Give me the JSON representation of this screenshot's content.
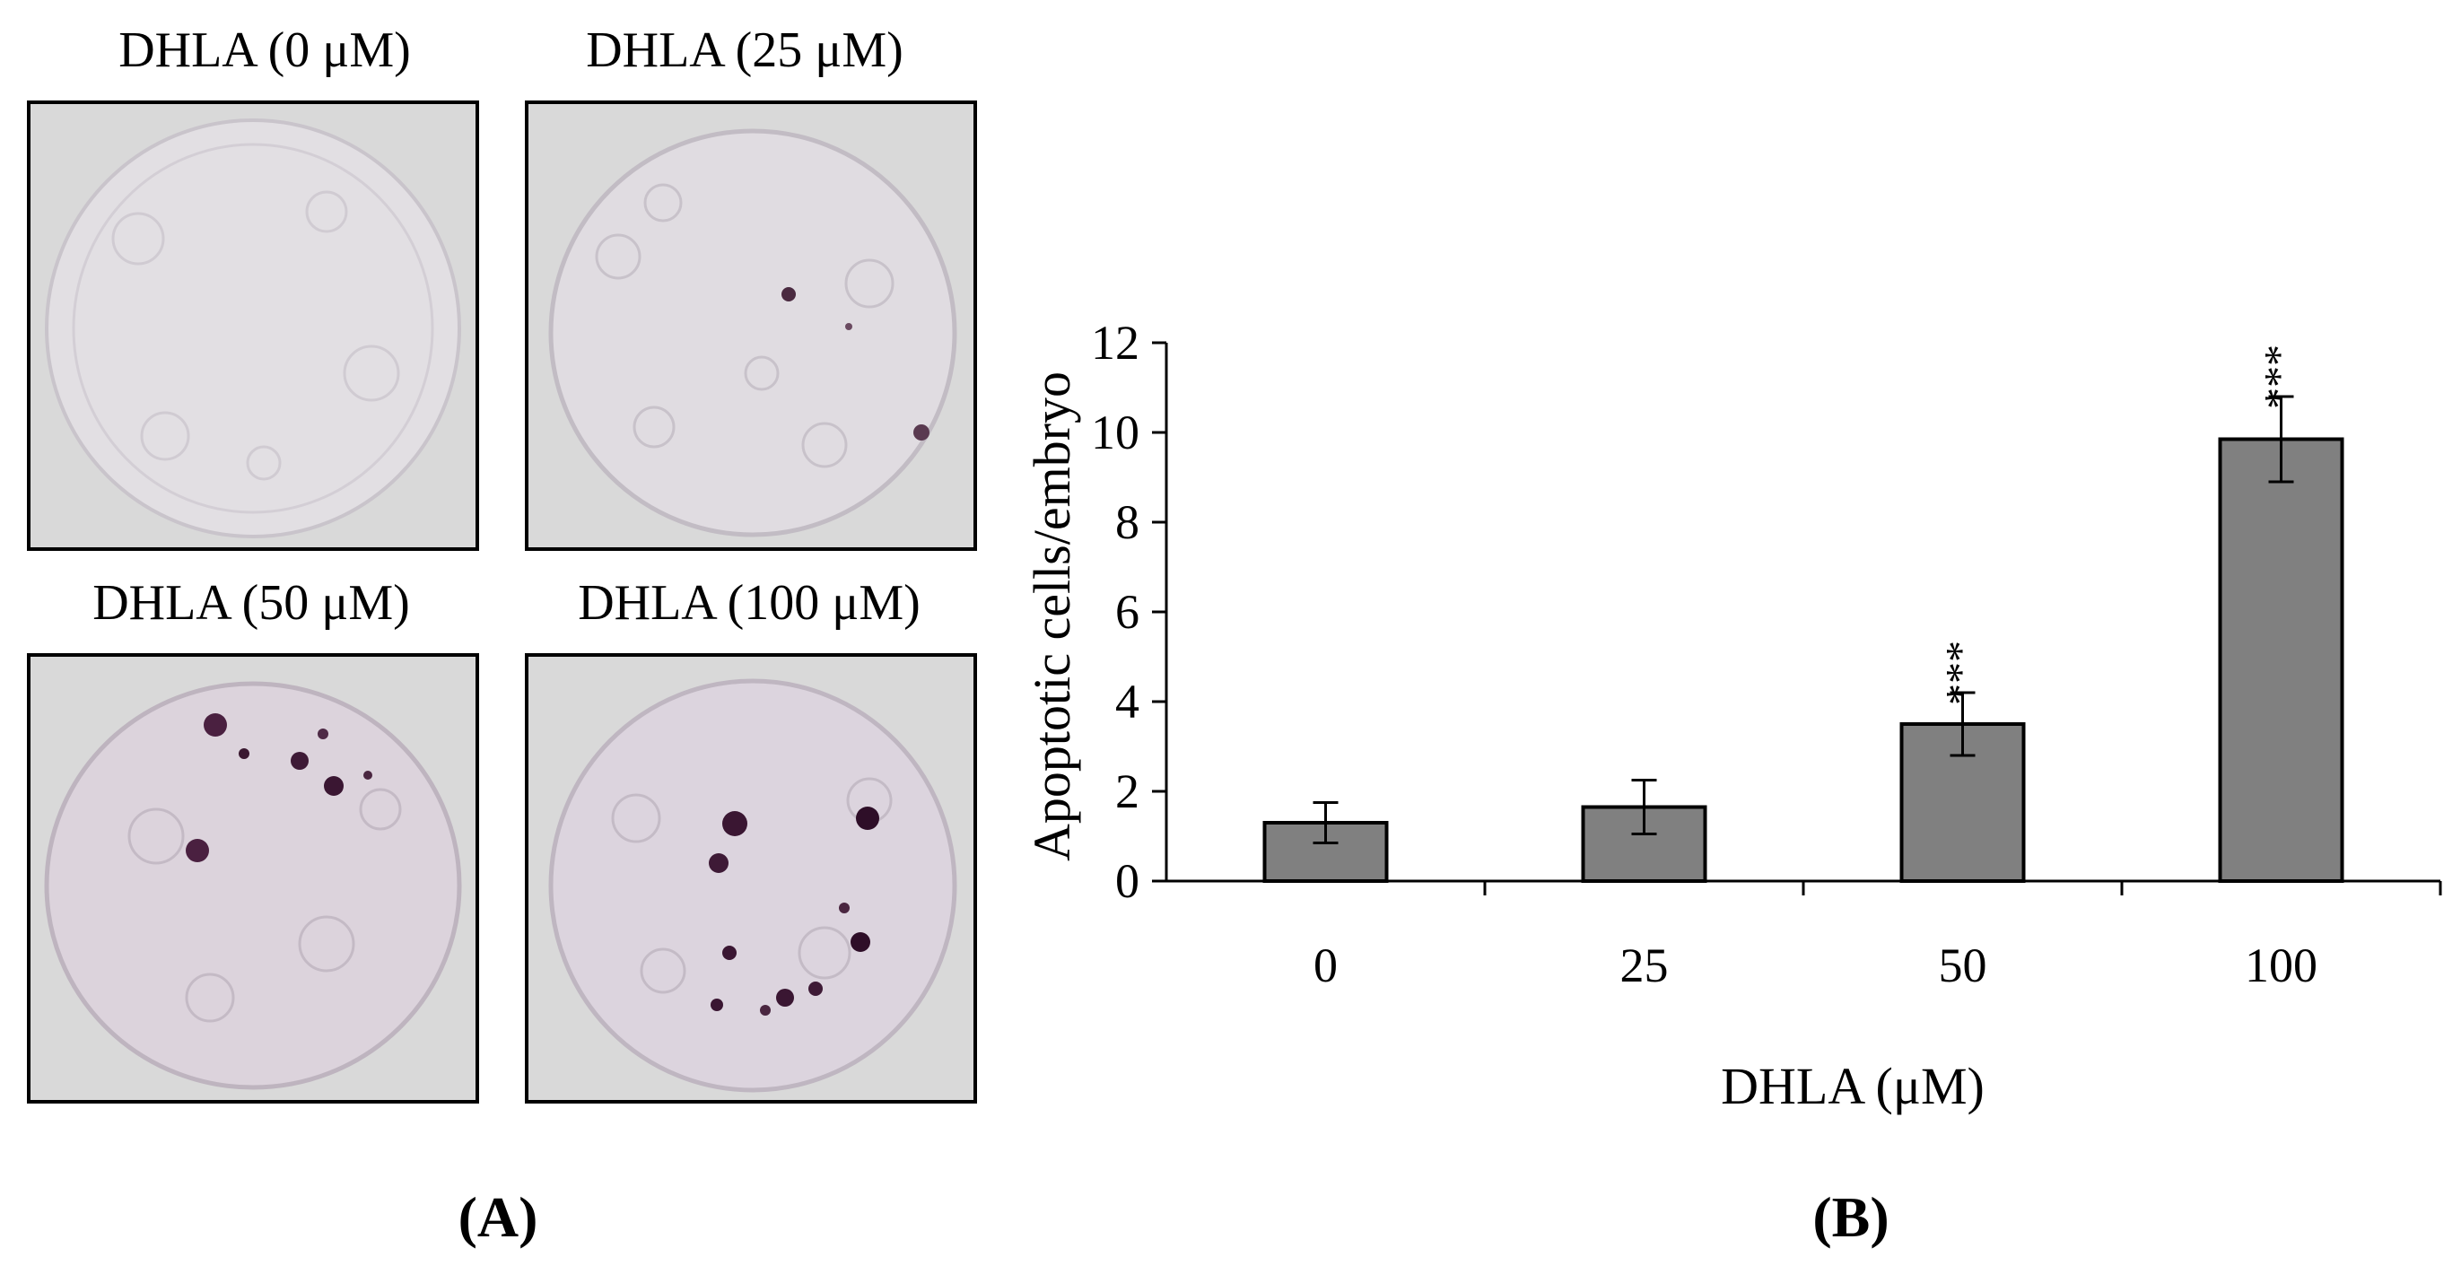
{
  "panel_a": {
    "label": "(A)",
    "images": [
      {
        "title": "DHLA (0 μM)"
      },
      {
        "title": "DHLA (25 μM)"
      },
      {
        "title": "DHLA (50 μM)"
      },
      {
        "title": "DHLA (100 μM)"
      }
    ]
  },
  "panel_b": {
    "label": "(B)"
  },
  "chart_data": {
    "type": "bar",
    "categories": [
      "0",
      "25",
      "50",
      "100"
    ],
    "values": [
      1.3,
      1.65,
      3.5,
      9.85
    ],
    "errors": [
      0.45,
      0.6,
      0.7,
      0.95
    ],
    "annotations": [
      "",
      "",
      "***",
      "***"
    ],
    "xlabel": "DHLA (μM)",
    "ylabel": "Apoptotic cells/embryo",
    "ylim": [
      0,
      12
    ],
    "yticks": [
      0,
      2,
      4,
      6,
      8,
      10,
      12
    ],
    "grid": false,
    "bar_color": "#808080"
  }
}
